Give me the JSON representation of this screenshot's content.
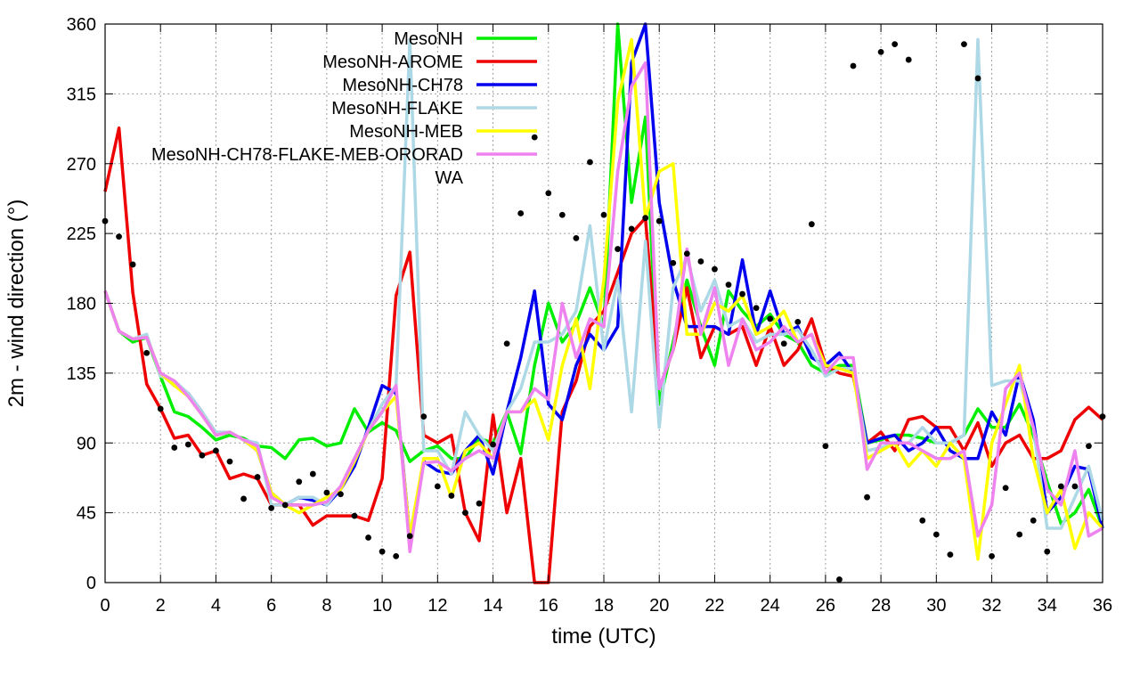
{
  "chart_data": {
    "type": "line",
    "title": "",
    "xlabel": "time (UTC)",
    "ylabel": "2m - wind direction (°)",
    "xlim": [
      0,
      36
    ],
    "ylim": [
      0,
      360
    ],
    "xticks": [
      0,
      2,
      4,
      6,
      8,
      10,
      12,
      14,
      16,
      18,
      20,
      22,
      24,
      26,
      28,
      30,
      32,
      34,
      36
    ],
    "yticks": [
      0,
      45,
      90,
      135,
      180,
      225,
      270,
      315,
      360
    ],
    "grid": true,
    "legend_position": "top-center",
    "series": [
      {
        "name": "MesoNH",
        "color": "#00ee00",
        "style": "line",
        "x": [
          0,
          0.5,
          1,
          1.5,
          2,
          2.5,
          3,
          3.5,
          4,
          4.5,
          5,
          5.5,
          6,
          6.5,
          7,
          7.5,
          8,
          8.5,
          9,
          9.5,
          10,
          10.5,
          11,
          11.5,
          12,
          12.5,
          13,
          13.5,
          14,
          14.5,
          15,
          15.5,
          16,
          16.5,
          17,
          17.5,
          18,
          18.5,
          19,
          19.5,
          20,
          20.5,
          21,
          21.5,
          22,
          22.5,
          23,
          23.5,
          24,
          24.5,
          25,
          25.5,
          26,
          26.5,
          27,
          27.5,
          28,
          28.5,
          29,
          29.5,
          30,
          30.5,
          31,
          31.5,
          32,
          32.5,
          33,
          33.5,
          34,
          34.5,
          35,
          35.5,
          36
        ],
        "y": [
          188,
          162,
          155,
          158,
          133,
          110,
          107,
          100,
          92,
          95,
          93,
          88,
          87,
          80,
          92,
          93,
          88,
          90,
          112,
          97,
          103,
          98,
          78,
          85,
          88,
          80,
          80,
          93,
          90,
          110,
          83,
          140,
          180,
          155,
          167,
          190,
          165,
          360,
          245,
          300,
          115,
          155,
          195,
          165,
          140,
          188,
          175,
          165,
          173,
          160,
          155,
          140,
          135,
          140,
          140,
          90,
          92,
          95,
          95,
          93,
          90,
          90,
          95,
          112,
          100,
          100,
          115,
          95,
          65,
          38,
          45,
          60,
          35
        ]
      },
      {
        "name": "MesoNH-AROME",
        "color": "#ee0000",
        "style": "line",
        "x": [
          0,
          0.5,
          1,
          1.5,
          2,
          2.5,
          3,
          3.5,
          4,
          4.5,
          5,
          5.5,
          6,
          6.5,
          7,
          7.5,
          8,
          8.5,
          9,
          9.5,
          10,
          10.5,
          11,
          11.5,
          12,
          12.5,
          13,
          13.5,
          14,
          14.5,
          15,
          15.5,
          16,
          16.5,
          17,
          17.5,
          18,
          18.5,
          19,
          19.5,
          20,
          20.5,
          21,
          21.5,
          22,
          22.5,
          23,
          23.5,
          24,
          24.5,
          25,
          25.5,
          26,
          26.5,
          27,
          27.5,
          28,
          28.5,
          29,
          29.5,
          30,
          30.5,
          31,
          31.5,
          32,
          32.5,
          33,
          33.5,
          34,
          34.5,
          35,
          35.5,
          36
        ],
        "y": [
          252,
          293,
          187,
          128,
          112,
          93,
          95,
          82,
          85,
          67,
          70,
          67,
          50,
          50,
          50,
          37,
          43,
          43,
          43,
          40,
          67,
          185,
          213,
          95,
          90,
          95,
          45,
          27,
          108,
          45,
          80,
          0,
          0,
          110,
          130,
          165,
          175,
          200,
          225,
          235,
          125,
          150,
          190,
          145,
          165,
          160,
          165,
          140,
          165,
          140,
          150,
          170,
          140,
          135,
          133,
          90,
          97,
          85,
          105,
          107,
          100,
          100,
          85,
          103,
          75,
          90,
          95,
          80,
          80,
          85,
          105,
          113,
          105
        ]
      },
      {
        "name": "MesoNH-CH78",
        "color": "#0000ee",
        "style": "line",
        "x": [
          0,
          0.5,
          1,
          1.5,
          2,
          2.5,
          3,
          3.5,
          4,
          4.5,
          5,
          5.5,
          6,
          6.5,
          7,
          7.5,
          8,
          8.5,
          9,
          9.5,
          10,
          10.5,
          11,
          11.5,
          12,
          12.5,
          13,
          13.5,
          14,
          14.5,
          15,
          15.5,
          16,
          16.5,
          17,
          17.5,
          18,
          18.5,
          19,
          19.5,
          20,
          20.5,
          21,
          21.5,
          22,
          22.5,
          23,
          23.5,
          24,
          24.5,
          25,
          25.5,
          26,
          26.5,
          27,
          27.5,
          28,
          28.5,
          29,
          29.5,
          30,
          30.5,
          31,
          31.5,
          32,
          32.5,
          33,
          33.5,
          34,
          34.5,
          35,
          35.5,
          36
        ],
        "y": [
          188,
          162,
          157,
          158,
          135,
          127,
          122,
          110,
          95,
          97,
          92,
          85,
          58,
          50,
          55,
          53,
          50,
          60,
          75,
          100,
          127,
          122,
          30,
          78,
          72,
          70,
          85,
          95,
          70,
          110,
          145,
          188,
          115,
          105,
          140,
          160,
          150,
          165,
          335,
          360,
          245,
          195,
          165,
          165,
          165,
          160,
          208,
          160,
          188,
          160,
          165,
          145,
          140,
          148,
          135,
          90,
          93,
          95,
          85,
          90,
          100,
          85,
          80,
          80,
          110,
          95,
          135,
          105,
          45,
          55,
          75,
          73,
          35
        ]
      },
      {
        "name": "MesoNH-FLAKE",
        "color": "#add8e6",
        "style": "line",
        "x": [
          0,
          0.5,
          1,
          1.5,
          2,
          2.5,
          3,
          3.5,
          4,
          4.5,
          5,
          5.5,
          6,
          6.5,
          7,
          7.5,
          8,
          8.5,
          9,
          9.5,
          10,
          10.5,
          11,
          11.5,
          12,
          12.5,
          13,
          13.5,
          14,
          14.5,
          15,
          15.5,
          16,
          16.5,
          17,
          17.5,
          18,
          18.5,
          19,
          19.5,
          20,
          20.5,
          21,
          21.5,
          22,
          22.5,
          23,
          23.5,
          24,
          24.5,
          25,
          25.5,
          26,
          26.5,
          27,
          27.5,
          28,
          28.5,
          29,
          29.5,
          30,
          30.5,
          31,
          31.5,
          32,
          32.5,
          33,
          33.5,
          34,
          34.5,
          35,
          35.5,
          36
        ],
        "y": [
          188,
          162,
          157,
          160,
          133,
          130,
          122,
          110,
          97,
          97,
          92,
          90,
          50,
          50,
          55,
          55,
          50,
          62,
          80,
          98,
          115,
          127,
          350,
          85,
          85,
          70,
          110,
          95,
          85,
          110,
          125,
          155,
          155,
          160,
          175,
          230,
          150,
          195,
          110,
          220,
          100,
          190,
          210,
          175,
          195,
          165,
          170,
          155,
          160,
          160,
          163,
          150,
          133,
          138,
          138,
          85,
          87,
          90,
          90,
          100,
          90,
          90,
          95,
          350,
          127,
          130,
          130,
          100,
          35,
          35,
          55,
          75,
          40
        ]
      },
      {
        "name": "MesoNH-MEB",
        "color": "#ffff00",
        "style": "line",
        "x": [
          0,
          0.5,
          1,
          1.5,
          2,
          2.5,
          3,
          3.5,
          4,
          4.5,
          5,
          5.5,
          6,
          6.5,
          7,
          7.5,
          8,
          8.5,
          9,
          9.5,
          10,
          10.5,
          11,
          11.5,
          12,
          12.5,
          13,
          13.5,
          14,
          14.5,
          15,
          15.5,
          16,
          16.5,
          17,
          17.5,
          18,
          18.5,
          19,
          19.5,
          20,
          20.5,
          21,
          21.5,
          22,
          22.5,
          23,
          23.5,
          24,
          24.5,
          25,
          25.5,
          26,
          26.5,
          27,
          27.5,
          28,
          28.5,
          29,
          29.5,
          30,
          30.5,
          31,
          31.5,
          32,
          32.5,
          33,
          33.5,
          34,
          34.5,
          35,
          35.5,
          36
        ],
        "y": [
          188,
          162,
          157,
          158,
          135,
          127,
          120,
          108,
          95,
          97,
          92,
          85,
          58,
          50,
          45,
          50,
          55,
          60,
          78,
          98,
          110,
          120,
          30,
          80,
          80,
          55,
          85,
          90,
          80,
          110,
          110,
          118,
          92,
          140,
          170,
          125,
          195,
          310,
          350,
          235,
          265,
          270,
          160,
          160,
          180,
          175,
          185,
          160,
          165,
          175,
          155,
          160,
          140,
          138,
          135,
          80,
          85,
          90,
          75,
          85,
          75,
          90,
          80,
          15,
          90,
          115,
          140,
          80,
          45,
          60,
          22,
          45,
          35
        ]
      },
      {
        "name": "MesoNH-CH78-FLAKE-MEB-ORORAD",
        "color": "#ee82ee",
        "style": "line",
        "x": [
          0,
          0.5,
          1,
          1.5,
          2,
          2.5,
          3,
          3.5,
          4,
          4.5,
          5,
          5.5,
          6,
          6.5,
          7,
          7.5,
          8,
          8.5,
          9,
          9.5,
          10,
          10.5,
          11,
          11.5,
          12,
          12.5,
          13,
          13.5,
          14,
          14.5,
          15,
          15.5,
          16,
          16.5,
          17,
          17.5,
          18,
          18.5,
          19,
          19.5,
          20,
          20.5,
          21,
          21.5,
          22,
          22.5,
          23,
          23.5,
          24,
          24.5,
          25,
          25.5,
          26,
          26.5,
          27,
          27.5,
          28,
          28.5,
          29,
          29.5,
          30,
          30.5,
          31,
          31.5,
          32,
          32.5,
          33,
          33.5,
          34,
          34.5,
          35,
          35.5,
          36
        ],
        "y": [
          188,
          162,
          157,
          158,
          135,
          130,
          120,
          108,
          95,
          97,
          92,
          88,
          55,
          50,
          50,
          50,
          52,
          62,
          80,
          98,
          110,
          127,
          20,
          77,
          78,
          72,
          80,
          85,
          80,
          110,
          110,
          125,
          118,
          180,
          145,
          170,
          165,
          265,
          320,
          335,
          125,
          150,
          215,
          160,
          190,
          140,
          170,
          150,
          155,
          165,
          155,
          160,
          135,
          145,
          145,
          73,
          90,
          90,
          90,
          85,
          80,
          80,
          85,
          30,
          50,
          125,
          135,
          100,
          60,
          50,
          85,
          30,
          35
        ]
      },
      {
        "name": "WA",
        "color": "#000000",
        "style": "points",
        "x": [
          0,
          0.5,
          1,
          1.5,
          2,
          2.5,
          3,
          3.5,
          4,
          4.5,
          5,
          5.5,
          6,
          6.5,
          7,
          7.5,
          8,
          8.5,
          9,
          9.5,
          10,
          10.5,
          11,
          11.5,
          12,
          12.5,
          13,
          13.5,
          14,
          14.5,
          15,
          15.5,
          16,
          16.5,
          17,
          17.5,
          18,
          18.5,
          19,
          19.5,
          20,
          20.5,
          21,
          21.5,
          22,
          22.5,
          23,
          23.5,
          24,
          24.5,
          25,
          25.5,
          26,
          26.5,
          27,
          27.5,
          28,
          28.5,
          29,
          29.5,
          30,
          30.5,
          31,
          31.5,
          32,
          32.5,
          33,
          33.5,
          34,
          34.5,
          35,
          35.5,
          36
        ],
        "y": [
          233,
          223,
          205,
          148,
          112,
          87,
          89,
          82,
          85,
          78,
          54,
          68,
          48,
          50,
          65,
          70,
          58,
          57,
          43,
          29,
          20,
          17,
          30,
          107,
          62,
          56,
          45,
          51,
          89,
          154,
          238,
          287,
          251,
          237,
          222,
          271,
          237,
          215,
          228,
          235,
          233,
          206,
          212,
          207,
          202,
          192,
          186,
          177,
          170,
          154,
          168,
          231,
          88,
          2,
          333,
          55,
          342,
          347,
          337,
          40,
          31,
          18,
          347,
          325,
          17,
          61,
          31,
          40,
          20,
          62,
          62,
          88,
          107
        ]
      }
    ]
  }
}
